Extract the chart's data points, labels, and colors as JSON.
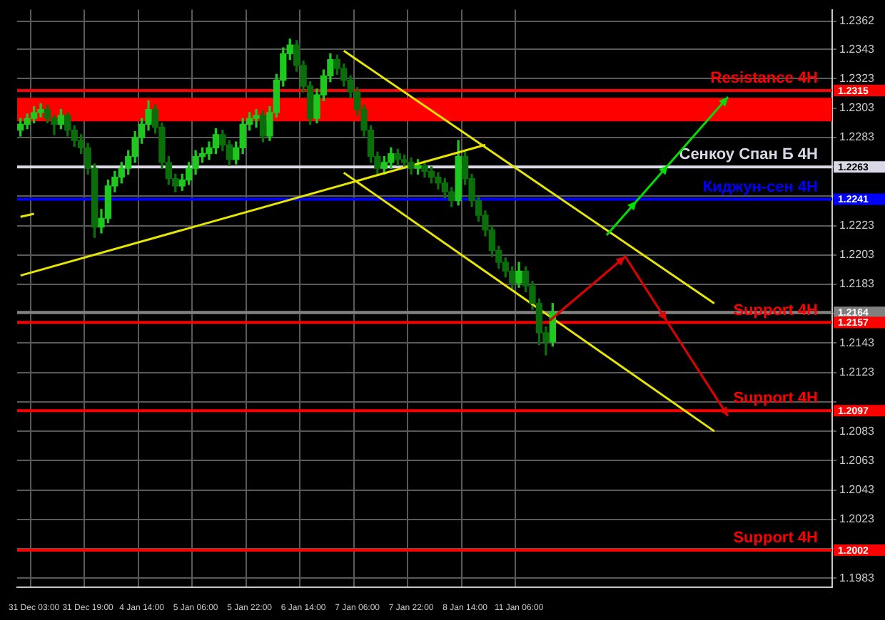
{
  "chart_data": {
    "type": "candlestick",
    "categories": [
      null,
      null,
      "31 Dec 03:00",
      null,
      null,
      null,
      null,
      null,
      null,
      null,
      "31 Dec 19:00",
      null,
      null,
      null,
      null,
      null,
      null,
      null,
      "4 Jan 14:00",
      null,
      null,
      null,
      null,
      null,
      null,
      null,
      "5 Jan 06:00",
      null,
      null,
      null,
      null,
      null,
      null,
      null,
      "5 Jan 22:00",
      null,
      null,
      null,
      null,
      null,
      null,
      null,
      "6 Jan 14:00",
      null,
      null,
      null,
      null,
      null,
      null,
      null,
      "7 Jan 06:00",
      null,
      null,
      null,
      null,
      null,
      null,
      null,
      "7 Jan 22:00",
      null,
      null,
      null,
      null,
      null,
      null,
      null,
      "8 Jan 14:00",
      null,
      null,
      null,
      null,
      null,
      null,
      null,
      "11 Jan 06:00",
      null,
      null,
      null,
      null,
      null,
      null,
      null,
      null,
      null,
      null,
      null,
      null,
      null,
      null,
      null,
      null,
      null,
      null,
      null,
      null,
      null,
      null,
      null,
      null,
      null,
      null,
      null,
      null,
      null,
      null,
      null,
      null,
      null,
      null,
      null,
      null,
      null,
      null,
      null,
      null,
      null,
      null,
      null,
      null,
      null,
      null
    ],
    "colors": [
      "#1ec81e",
      "#1ec81e",
      "#1ec81e",
      "#1ec81e",
      "#0a6e0a",
      "#0a6e0a",
      "#1ec81e",
      "#0a6e0a",
      "#0a6e0a",
      "#0a6e0a",
      "#0a6e0a",
      "#0a6e0a",
      "#1ec81e",
      "#1ec81e",
      "#1ec81e",
      "#1ec81e",
      "#1ec81e",
      "#1ec81e",
      "#1ec81e",
      "#1ec81e",
      "#0a6e0a",
      "#0a6e0a",
      "#0a6e0a",
      "#0a6e0a",
      "#1ec81e",
      "#1ec81e",
      "#1ec81e",
      "#1ec81e",
      "#1ec81e",
      "#1ec81e",
      "#0a6e0a",
      "#0a6e0a",
      "#1ec81e",
      "#1ec81e",
      "#1ec81e",
      "#1ec81e",
      "#0a6e0a",
      "#1ec81e",
      "#1ec81e",
      "#1ec81e",
      "#1ec81e",
      "#0a6e0a",
      "#0a6e0a",
      "#0a6e0a",
      "#1ec81e",
      "#1ec81e",
      "#1ec81e",
      "#0a6e0a",
      "#0a6e0a",
      "#0a6e0a",
      "#0a6e0a",
      "#0a6e0a",
      "#0a6e0a",
      "#0a6e0a",
      "#1ec81e",
      "#1ec81e",
      "#0a6e0a",
      "#0a6e0a",
      "#0a6e0a",
      "#1ec81e",
      "#0a6e0a",
      "#0a6e0a",
      "#0a6e0a",
      "#0a6e0a",
      "#0a6e0a",
      "#1ec81e",
      "#0a6e0a",
      "#0a6e0a",
      "#0a6e0a",
      "#0a6e0a",
      "#0a6e0a",
      "#0a6e0a",
      "#0a6e0a",
      "#0a6e0a",
      "#1ec81e",
      "#0a6e0a",
      "#0a6e0a",
      "#0a6e0a",
      "#0a6e0a",
      "#1ec81e",
      null,
      null,
      null,
      null,
      null,
      null,
      null,
      null,
      null,
      null,
      null,
      null,
      null,
      null,
      null,
      null,
      null,
      null,
      null,
      null,
      null,
      null,
      null,
      null,
      null,
      null,
      null,
      null,
      null,
      null,
      null,
      null,
      null,
      null,
      null,
      null,
      null,
      null,
      null,
      null,
      null
    ],
    "ohlc": [
      [
        1.2288,
        1.2296,
        1.2284,
        1.2292
      ],
      [
        1.2292,
        1.2299,
        1.2289,
        1.2296
      ],
      [
        1.2296,
        1.2304,
        1.2293,
        1.23
      ],
      [
        1.23,
        1.2306,
        1.2297,
        1.2302
      ],
      [
        1.2302,
        1.2305,
        1.2293,
        1.2296
      ],
      [
        1.2296,
        1.2298,
        1.2285,
        1.2292
      ],
      [
        1.2292,
        1.2302,
        1.2289,
        1.2298
      ],
      [
        1.2298,
        1.23,
        1.2284,
        1.2288
      ],
      [
        1.2288,
        1.2291,
        1.2277,
        1.2281
      ],
      [
        1.2281,
        1.2285,
        1.2272,
        1.2276
      ],
      [
        1.2276,
        1.2279,
        1.2258,
        1.2262
      ],
      [
        1.2262,
        1.2265,
        1.2215,
        1.2222
      ],
      [
        1.2222,
        1.2234,
        1.2218,
        1.2228
      ],
      [
        1.2228,
        1.2254,
        1.2225,
        1.225
      ],
      [
        1.225,
        1.226,
        1.2246,
        1.2256
      ],
      [
        1.2256,
        1.2266,
        1.2252,
        1.2262
      ],
      [
        1.2262,
        1.2274,
        1.2258,
        1.227
      ],
      [
        1.227,
        1.2287,
        1.2266,
        1.2283
      ],
      [
        1.2283,
        1.2296,
        1.2279,
        1.2292
      ],
      [
        1.2292,
        1.2308,
        1.2288,
        1.2302
      ],
      [
        1.2302,
        1.2305,
        1.2286,
        1.229
      ],
      [
        1.229,
        1.2293,
        1.2262,
        1.2266
      ],
      [
        1.2266,
        1.227,
        1.2251,
        1.2255
      ],
      [
        1.2255,
        1.2258,
        1.2246,
        1.225
      ],
      [
        1.225,
        1.2258,
        1.2247,
        1.2254
      ],
      [
        1.2254,
        1.2266,
        1.2251,
        1.2262
      ],
      [
        1.2262,
        1.2274,
        1.2258,
        1.227
      ],
      [
        1.227,
        1.2276,
        1.2266,
        1.2272
      ],
      [
        1.2272,
        1.228,
        1.2268,
        1.2276
      ],
      [
        1.2276,
        1.2289,
        1.2272,
        1.2285
      ],
      [
        1.2285,
        1.2288,
        1.2274,
        1.2278
      ],
      [
        1.2278,
        1.2281,
        1.2264,
        1.2268
      ],
      [
        1.2268,
        1.228,
        1.2265,
        1.2276
      ],
      [
        1.2276,
        1.2296,
        1.2272,
        1.2292
      ],
      [
        1.2292,
        1.23,
        1.2288,
        1.2296
      ],
      [
        1.2296,
        1.2302,
        1.229,
        1.2298
      ],
      [
        1.2298,
        1.2301,
        1.228,
        1.2284
      ],
      [
        1.2284,
        1.2304,
        1.2281,
        1.23
      ],
      [
        1.23,
        1.2326,
        1.2297,
        1.2322
      ],
      [
        1.2322,
        1.2344,
        1.2318,
        1.234
      ],
      [
        1.234,
        1.235,
        1.2336,
        1.2346
      ],
      [
        1.2346,
        1.2349,
        1.2328,
        1.2332
      ],
      [
        1.2332,
        1.2335,
        1.2314,
        1.2318
      ],
      [
        1.2318,
        1.2321,
        1.2292,
        1.2296
      ],
      [
        1.2296,
        1.2316,
        1.2293,
        1.2312
      ],
      [
        1.2312,
        1.2329,
        1.2308,
        1.2325
      ],
      [
        1.2325,
        1.234,
        1.2321,
        1.2336
      ],
      [
        1.2336,
        1.2339,
        1.2326,
        1.233
      ],
      [
        1.233,
        1.2333,
        1.2318,
        1.2322
      ],
      [
        1.2322,
        1.2325,
        1.231,
        1.2314
      ],
      [
        1.2314,
        1.2317,
        1.2298,
        1.2302
      ],
      [
        1.2302,
        1.2305,
        1.2284,
        1.2288
      ],
      [
        1.2288,
        1.2291,
        1.2266,
        1.227
      ],
      [
        1.227,
        1.2273,
        1.2258,
        1.2262
      ],
      [
        1.2262,
        1.227,
        1.2258,
        1.2266
      ],
      [
        1.2266,
        1.2276,
        1.2262,
        1.2272
      ],
      [
        1.2272,
        1.2275,
        1.2264,
        1.2268
      ],
      [
        1.2268,
        1.2271,
        1.2262,
        1.2266
      ],
      [
        1.2266,
        1.2269,
        1.2258,
        1.2262
      ],
      [
        1.2262,
        1.2268,
        1.2258,
        1.2264
      ],
      [
        1.2264,
        1.2267,
        1.2256,
        1.226
      ],
      [
        1.226,
        1.2263,
        1.2252,
        1.2256
      ],
      [
        1.2256,
        1.2259,
        1.2248,
        1.2252
      ],
      [
        1.2252,
        1.2255,
        1.2242,
        1.2246
      ],
      [
        1.2246,
        1.2249,
        1.2236,
        1.224
      ],
      [
        1.224,
        1.2281,
        1.2237,
        1.227
      ],
      [
        1.227,
        1.2273,
        1.2251,
        1.2255
      ],
      [
        1.2255,
        1.2258,
        1.2236,
        1.224
      ],
      [
        1.224,
        1.2243,
        1.2226,
        1.223
      ],
      [
        1.223,
        1.2233,
        1.2216,
        1.222
      ],
      [
        1.222,
        1.2223,
        1.2202,
        1.2206
      ],
      [
        1.2206,
        1.2209,
        1.2194,
        1.2198
      ],
      [
        1.2198,
        1.2201,
        1.2188,
        1.2192
      ],
      [
        1.2192,
        1.2195,
        1.218,
        1.2184
      ],
      [
        1.2184,
        1.2198,
        1.2181,
        1.2192
      ],
      [
        1.2192,
        1.2195,
        1.2178,
        1.2182
      ],
      [
        1.2182,
        1.2185,
        1.2166,
        1.217
      ],
      [
        1.217,
        1.2173,
        1.2142,
        1.215
      ],
      [
        1.215,
        1.2154,
        1.2135,
        1.2144
      ],
      [
        1.2144,
        1.217,
        1.2141,
        1.2164
      ],
      null,
      null,
      null,
      null,
      null,
      null,
      null,
      null,
      null,
      null,
      null,
      null,
      null,
      null,
      null,
      null,
      null,
      null,
      null,
      null,
      null,
      null,
      null,
      null,
      null,
      null,
      null,
      null,
      null,
      null,
      null,
      null,
      null,
      null,
      null,
      null,
      null,
      null,
      null,
      null,
      null
    ],
    "series": [
      {
        "type": "line",
        "color": "#e6e600",
        "values": [
          1.2189,
          null,
          null,
          null,
          null,
          null,
          null,
          null,
          null,
          null,
          null,
          null,
          null,
          null,
          null,
          null,
          null,
          null,
          null,
          null,
          null,
          null,
          null,
          null,
          null,
          null,
          null,
          null,
          null,
          null,
          null,
          null,
          null,
          null,
          null,
          null,
          null,
          null,
          null,
          null,
          null,
          null,
          null,
          null,
          null,
          null,
          null,
          null,
          null,
          null,
          null,
          null,
          null,
          null,
          null,
          null,
          null,
          null,
          null,
          null,
          null,
          null,
          null,
          null,
          null,
          null,
          null,
          null,
          null,
          1.2278,
          null,
          null,
          null,
          null,
          null,
          null,
          null,
          null,
          null,
          null,
          null,
          null,
          null,
          null,
          null,
          null,
          null,
          null,
          null,
          null,
          null,
          null,
          null,
          null,
          null,
          null,
          null,
          null,
          null,
          null,
          null,
          null,
          null,
          null,
          null,
          null,
          null,
          null,
          null,
          null,
          null,
          null,
          null,
          null,
          null,
          null,
          null,
          null,
          null,
          null,
          null
        ]
      },
      {
        "type": "line",
        "color": "#e6e600",
        "values": [
          1.2229,
          null,
          1.2231,
          null,
          null,
          null,
          null,
          null,
          null,
          null,
          null,
          null,
          null,
          null,
          null,
          null,
          null,
          null,
          null,
          null,
          null,
          null,
          null,
          null,
          null,
          null,
          null,
          null,
          null,
          null,
          null,
          null,
          null,
          null,
          null,
          null,
          null,
          null,
          null,
          null,
          null,
          null,
          null,
          null,
          null,
          null,
          null,
          null,
          null,
          null,
          null,
          null,
          null,
          null,
          null,
          null,
          null,
          null,
          null,
          null,
          null,
          null,
          null,
          null,
          null,
          null,
          null,
          null,
          null,
          null,
          null,
          null,
          null,
          null,
          null,
          null,
          null,
          null,
          null,
          null,
          null,
          null,
          null,
          null,
          null,
          null,
          null,
          null,
          null,
          null,
          null,
          null,
          null,
          null,
          null,
          null,
          null,
          null,
          null,
          null,
          null,
          null,
          null,
          null,
          null,
          null,
          null,
          null,
          null,
          null,
          null,
          null,
          null,
          null,
          null,
          null,
          null,
          null,
          null,
          null,
          null
        ]
      },
      {
        "type": "line",
        "color": "#e6e600",
        "values": [
          null,
          null,
          null,
          null,
          null,
          null,
          null,
          null,
          null,
          null,
          null,
          null,
          null,
          null,
          null,
          null,
          null,
          null,
          null,
          null,
          null,
          null,
          null,
          null,
          null,
          null,
          null,
          null,
          null,
          null,
          null,
          null,
          null,
          null,
          null,
          null,
          null,
          null,
          null,
          null,
          null,
          null,
          null,
          null,
          null,
          null,
          null,
          null,
          1.2342,
          null,
          null,
          null,
          null,
          null,
          null,
          null,
          null,
          null,
          null,
          null,
          null,
          null,
          null,
          null,
          null,
          null,
          null,
          null,
          null,
          null,
          null,
          null,
          null,
          null,
          null,
          null,
          null,
          null,
          null,
          null,
          null,
          null,
          null,
          null,
          null,
          null,
          null,
          null,
          null,
          null,
          null,
          null,
          null,
          null,
          null,
          null,
          null,
          null,
          null,
          null,
          null,
          null,
          null,
          1.217,
          null,
          null,
          null,
          null,
          null,
          null,
          null,
          null,
          null,
          null,
          null,
          null,
          null,
          null,
          null,
          null,
          null
        ]
      },
      {
        "type": "line",
        "color": "#e6e600",
        "values": [
          null,
          null,
          null,
          null,
          null,
          null,
          null,
          null,
          null,
          null,
          null,
          null,
          null,
          null,
          null,
          null,
          null,
          null,
          null,
          null,
          null,
          null,
          null,
          null,
          null,
          null,
          null,
          null,
          null,
          null,
          null,
          null,
          null,
          null,
          null,
          null,
          null,
          null,
          null,
          null,
          null,
          null,
          null,
          null,
          null,
          null,
          null,
          null,
          1.2259,
          null,
          null,
          null,
          null,
          null,
          null,
          null,
          null,
          null,
          null,
          null,
          null,
          null,
          null,
          null,
          null,
          null,
          null,
          null,
          null,
          null,
          null,
          null,
          null,
          null,
          null,
          null,
          null,
          null,
          null,
          null,
          null,
          null,
          null,
          null,
          null,
          null,
          null,
          null,
          null,
          null,
          null,
          null,
          null,
          null,
          null,
          null,
          null,
          null,
          null,
          null,
          null,
          null,
          null,
          1.2083,
          null,
          null,
          null,
          null,
          null,
          null,
          null,
          null,
          null,
          null,
          null,
          null,
          null,
          null,
          null,
          null,
          null
        ]
      }
    ],
    "ylim": [
      1.1977,
      1.237
    ],
    "yticks": [
      1.2362,
      1.2343,
      1.2323,
      1.2303,
      1.2283,
      {
        "value": 1.2263,
        "label": null
      },
      {
        "value": 1.2243,
        "label": null
      },
      1.2223,
      1.2203,
      1.2183,
      {
        "value": 1.2163,
        "label": null
      },
      1.2143,
      1.2123,
      {
        "value": 1.2103,
        "label": null
      },
      1.2083,
      1.2063,
      1.2043,
      1.2023,
      {
        "value": 1.2003,
        "label": null
      },
      1.1983
    ],
    "grid": true,
    "bands": [
      {
        "axis": "y",
        "from": 1.2294,
        "to": 1.231,
        "color": "#ff0000"
      }
    ],
    "ref_lines": [
      {
        "axis": "y",
        "value": 1.2315,
        "label": "Resistance 4H",
        "color": "#ff0000"
      },
      {
        "axis": "y",
        "value": 1.2263,
        "label": "Сенкоу Спан Б 4H",
        "color": "#d8d8e6"
      },
      {
        "axis": "y",
        "value": 1.2241,
        "label": "Киджун-сен 4H",
        "color": "#0000ff"
      },
      {
        "axis": "y",
        "value": 1.2164,
        "label": null,
        "color": "#808080"
      },
      {
        "axis": "y",
        "value": 1.2157,
        "label": "Support 4H",
        "color": "#ff0000"
      },
      {
        "axis": "y",
        "value": 1.2097,
        "label": "Support 4H",
        "color": "#ff0000"
      },
      {
        "axis": "y",
        "value": 1.2002,
        "label": "Support 4H",
        "color": "#ff0000"
      }
    ],
    "annotations": [
      "1.2315",
      "1.2263",
      "1.2241",
      "1.2164",
      "1.2157",
      "1.2097",
      "1.2002"
    ]
  }
}
